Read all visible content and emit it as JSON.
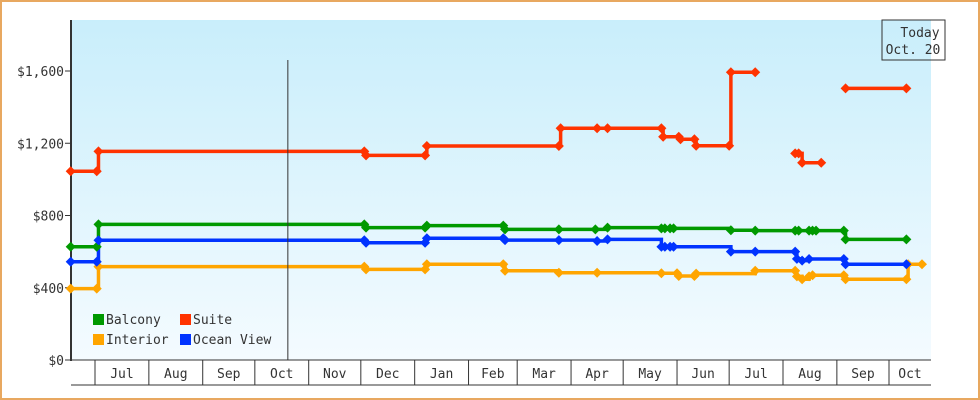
{
  "chart_data": {
    "type": "line",
    "step": "after",
    "title": "",
    "xlabel": "",
    "ylabel": "",
    "ylim": [
      0,
      1880
    ],
    "yticks": [
      0,
      400,
      800,
      1200,
      1600
    ],
    "ytick_labels": [
      "$0",
      "$400",
      "$800",
      "$1,200",
      "$1,600"
    ],
    "xtick_labels": [
      "Jul",
      "Aug",
      "Sep",
      "Oct",
      "Nov",
      "Dec",
      "Jan",
      "Feb",
      "Mar",
      "Apr",
      "May",
      "Jun",
      "Jul",
      "Aug",
      "Sep",
      "Oct"
    ],
    "xlim": [
      "Jun 17",
      "Oct 26"
    ],
    "grid": false,
    "legend_placement": "bottom-left",
    "today_marker": {
      "line1": "Today",
      "line2": "Oct. 20",
      "date": "Oct 20"
    },
    "series": [
      {
        "name": "Balcony",
        "color": "#009900",
        "points": [
          [
            "Jun 17",
            627
          ],
          [
            "Jul 2",
            627
          ],
          [
            "Jul 3",
            751
          ],
          [
            "Dec 3",
            751
          ],
          [
            "Dec 4",
            733
          ],
          [
            "Jan 7",
            733
          ],
          [
            "Jan 8",
            744
          ],
          [
            "Feb 21",
            744
          ],
          [
            "Feb 22",
            723
          ],
          [
            "Mar 25",
            723
          ],
          [
            "Apr 15",
            723
          ],
          [
            "Apr 22",
            733
          ],
          [
            "May 23",
            729
          ],
          [
            "May 25",
            729
          ],
          [
            "May 28",
            729
          ],
          [
            "May 30",
            729
          ],
          [
            "Jul 2",
            718
          ],
          [
            "Jul 16",
            716
          ],
          [
            "Aug 8",
            716
          ],
          [
            "Aug 10",
            716
          ],
          [
            "Aug 16",
            716
          ],
          [
            "Aug 18",
            716
          ],
          [
            "Aug 20",
            716
          ],
          [
            "Sep 5",
            716
          ],
          [
            "Sep 6",
            668
          ],
          [
            "Oct 11",
            668
          ]
        ]
      },
      {
        "name": "Suite",
        "color": "#ff3300",
        "points": [
          [
            "Jun 17",
            1045
          ],
          [
            "Jul 2",
            1045
          ],
          [
            "Jul 3",
            1155
          ],
          [
            "Dec 3",
            1155
          ],
          [
            "Dec 4",
            1133
          ],
          [
            "Jan 7",
            1133
          ],
          [
            "Jan 8",
            1185
          ],
          [
            "Mar 25",
            1185
          ],
          [
            "Mar 26",
            1283
          ],
          [
            "Apr 16",
            1283
          ],
          [
            "Apr 22",
            1283
          ],
          [
            "May 23",
            1283
          ],
          [
            "May 24",
            1236
          ],
          [
            "Jun 2",
            1236
          ],
          [
            "Jun 3",
            1222
          ],
          [
            "Jun 11",
            1222
          ],
          [
            "Jun 12",
            1186
          ],
          [
            "Jul 1",
            1186
          ],
          [
            "Jul 2",
            1593
          ],
          [
            "Jul 16",
            1593
          ],
          [
            "Jul 17",
            null
          ],
          [
            "Aug 8",
            1144
          ],
          [
            "Aug 10",
            1144
          ],
          [
            "Aug 12",
            1092
          ],
          [
            "Aug 23",
            1092
          ],
          [
            "Aug 24",
            null
          ],
          [
            "Sep 6",
            1504
          ],
          [
            "Oct 11",
            1504
          ]
        ]
      },
      {
        "name": "Interior",
        "color": "#ffa500",
        "points": [
          [
            "Jun 17",
            395
          ],
          [
            "Jul 2",
            395
          ],
          [
            "Jul 3",
            517
          ],
          [
            "Dec 3",
            517
          ],
          [
            "Dec 4",
            502
          ],
          [
            "Jan 7",
            502
          ],
          [
            "Jan 8",
            530
          ],
          [
            "Feb 21",
            530
          ],
          [
            "Feb 22",
            494
          ],
          [
            "Mar 25",
            483
          ],
          [
            "Apr 16",
            483
          ],
          [
            "May 23",
            480
          ],
          [
            "Jun 1",
            480
          ],
          [
            "Jun 2",
            465
          ],
          [
            "Jun 11",
            465
          ],
          [
            "Jun 12",
            478
          ],
          [
            "Jul 16",
            494
          ],
          [
            "Aug 8",
            494
          ],
          [
            "Aug 9",
            463
          ],
          [
            "Aug 12",
            447
          ],
          [
            "Aug 16",
            463
          ],
          [
            "Aug 18",
            469
          ],
          [
            "Sep 5",
            469
          ],
          [
            "Sep 6",
            447
          ],
          [
            "Oct 11",
            447
          ],
          [
            "Oct 12",
            530
          ],
          [
            "Oct 20",
            530
          ]
        ]
      },
      {
        "name": "Ocean View",
        "color": "#0033ff",
        "points": [
          [
            "Jun 17",
            544
          ],
          [
            "Jul 2",
            544
          ],
          [
            "Jul 3",
            663
          ],
          [
            "Dec 3",
            663
          ],
          [
            "Dec 4",
            649
          ],
          [
            "Jan 7",
            649
          ],
          [
            "Jan 8",
            674
          ],
          [
            "Feb 21",
            674
          ],
          [
            "Feb 22",
            664
          ],
          [
            "Mar 25",
            664
          ],
          [
            "Apr 16",
            659
          ],
          [
            "Apr 22",
            668
          ],
          [
            "May 23",
            627
          ],
          [
            "May 25",
            627
          ],
          [
            "May 28",
            627
          ],
          [
            "May 30",
            627
          ],
          [
            "Jul 2",
            600
          ],
          [
            "Jul 16",
            600
          ],
          [
            "Aug 8",
            600
          ],
          [
            "Aug 9",
            560
          ],
          [
            "Aug 12",
            550
          ],
          [
            "Aug 16",
            559
          ],
          [
            "Sep 5",
            559
          ],
          [
            "Sep 6",
            530
          ],
          [
            "Oct 11",
            530
          ]
        ]
      }
    ]
  }
}
